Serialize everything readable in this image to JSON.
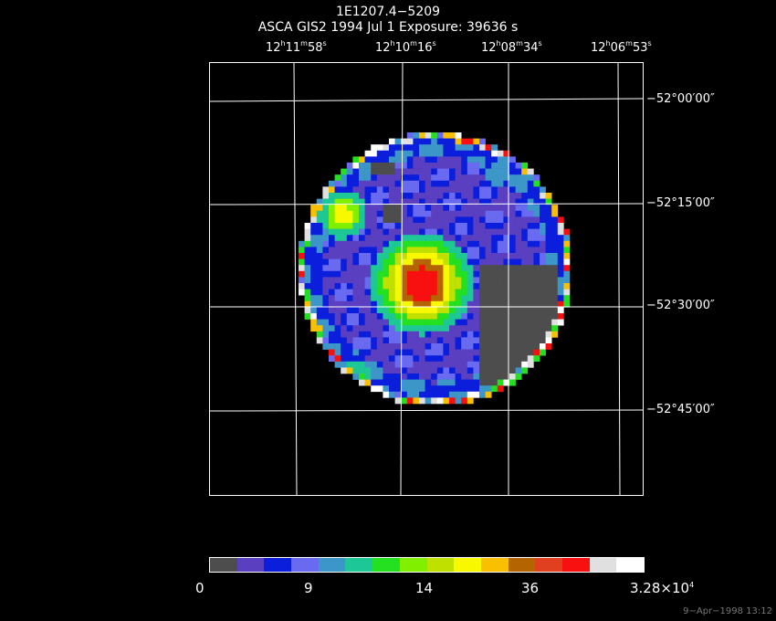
{
  "header": {
    "object_name": "1E1207.4−5209",
    "subtitle": "ASCA GIS2    1994 Jul  1     Exposure: 39636  s"
  },
  "axes": {
    "ra_labels": [
      {
        "h": "12",
        "m": "11",
        "s": "58"
      },
      {
        "h": "12",
        "m": "10",
        "s": "16"
      },
      {
        "h": "12",
        "m": "08",
        "s": "34"
      },
      {
        "h": "12",
        "m": "06",
        "s": "53"
      }
    ],
    "dec_labels": [
      "−52°00′00″",
      "−52°15′00″",
      "−52°30′00″",
      "−52°45′00″"
    ],
    "grid_color": "#ffffff"
  },
  "colorbar": {
    "colors": [
      "#4d4d4d",
      "#5a3fc0",
      "#0a1edc",
      "#6a6af0",
      "#3c96c8",
      "#1ec896",
      "#24e020",
      "#80f000",
      "#c0e000",
      "#f8f800",
      "#f8c000",
      "#b46400",
      "#e04020",
      "#f81010",
      "#e0e0e0",
      "#ffffff"
    ],
    "tick_labels": [
      "0",
      "9",
      "14",
      "36"
    ],
    "max_label_base": "3.28×10",
    "max_label_exp": "4"
  },
  "image": {
    "description_colors": {
      "background": "#000000",
      "source_peak": "#f81010"
    }
  },
  "footer": {
    "timestamp": "9−Apr−1998 13:12"
  }
}
